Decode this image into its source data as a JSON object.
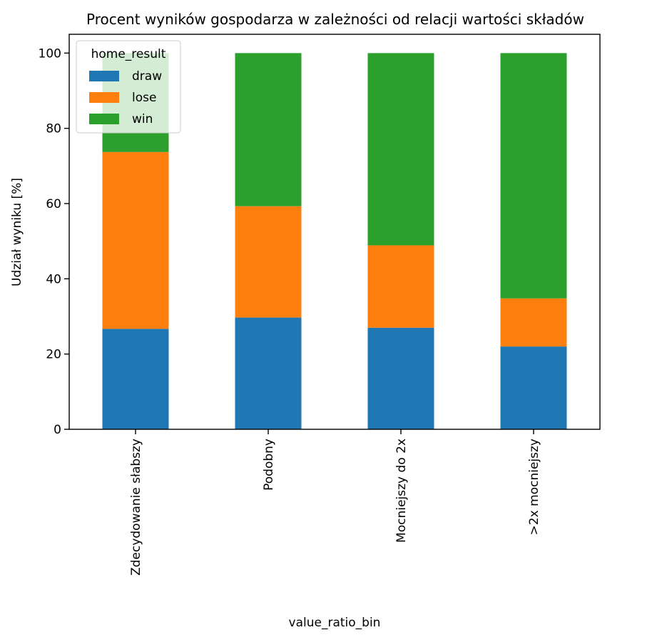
{
  "chart_data": {
    "type": "bar",
    "stacked": true,
    "title": "Procent wyników gospodarza w zależności od relacji wartości składów",
    "xlabel": "value_ratio_bin",
    "ylabel": "Udział wyniku [%]",
    "ylim": [
      0,
      105
    ],
    "yticks": [
      0,
      20,
      40,
      60,
      80,
      100
    ],
    "ytick_labels": [
      "0",
      "20",
      "40",
      "60",
      "80",
      "100"
    ],
    "categories": [
      "Zdecydowanie słabszy",
      "Podobny",
      "Mocniejszy do 2x",
      ">2x mocniejszy"
    ],
    "series": [
      {
        "name": "draw",
        "color": "#1f77b4",
        "values": [
          26.7,
          29.7,
          27.0,
          22.0
        ]
      },
      {
        "name": "lose",
        "color": "#ff7f0e",
        "values": [
          47.0,
          29.6,
          21.9,
          12.8
        ]
      },
      {
        "name": "win",
        "color": "#2ca02c",
        "values": [
          26.3,
          40.7,
          51.1,
          65.2
        ]
      }
    ],
    "legend": {
      "title": "home_result",
      "position": "top-left"
    },
    "grid": false
  }
}
